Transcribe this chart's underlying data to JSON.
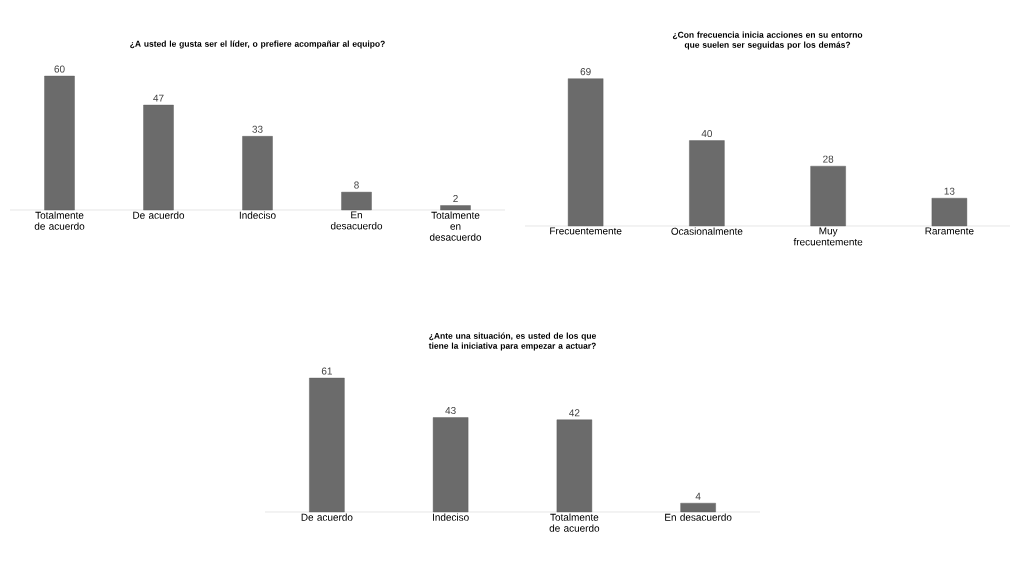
{
  "chart_data": [
    {
      "type": "bar",
      "title": "¿A usted le gusta ser el líder, o prefiere acompañar al equipo?",
      "categories": [
        "Totalmente de acuerdo",
        "De acuerdo",
        "Indeciso",
        "En desacuerdo",
        "Totalmente en desacuerdo"
      ],
      "values": [
        60,
        47,
        33,
        8,
        2
      ],
      "color": "#6b6b6b",
      "data_labels": true
    },
    {
      "type": "bar",
      "title": "¿Con frecuencia inicia acciones en su entorno que suelen ser seguidas por los demás?",
      "categories": [
        "Frecuentemente",
        "Ocasionalmente",
        "Muy frecuentemente",
        "Raramente"
      ],
      "values": [
        69,
        40,
        28,
        13
      ],
      "color": "#6b6b6b",
      "data_labels": true
    },
    {
      "type": "bar",
      "title": "¿Ante una situación, es usted de los que tiene la iniciativa para empezar a actuar?",
      "categories": [
        "De acuerdo",
        "Indeciso",
        "Totalmente de acuerdo",
        "En desacuerdo"
      ],
      "values": [
        61,
        43,
        42,
        4
      ],
      "color": "#6b6b6b",
      "data_labels": true
    }
  ]
}
